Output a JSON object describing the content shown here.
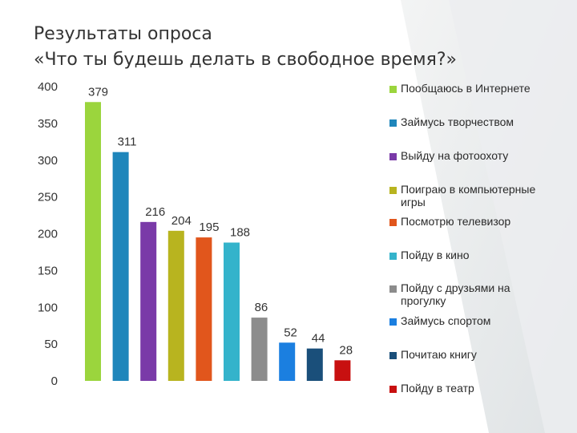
{
  "title_line1": "Результаты опроса",
  "title_line2": "«Что ты будешь делать в свободное время?»",
  "chart_data": {
    "type": "bar",
    "ylim": [
      0,
      400
    ],
    "yticks": [
      0,
      50,
      100,
      150,
      200,
      250,
      300,
      350,
      400
    ],
    "series": [
      {
        "name": "Пообщаюсь в Интернете",
        "value": 379,
        "color": "#9bd53d"
      },
      {
        "name": "Займусь творчеством",
        "value": 311,
        "color": "#1f86bb"
      },
      {
        "name": "Выйду на фотоохоту",
        "value": 216,
        "color": "#7a3aa8"
      },
      {
        "name": "Поиграю в компьютерные игры",
        "value": 204,
        "color": "#b8b41f"
      },
      {
        "name": "Посмотрю телевизор",
        "value": 195,
        "color": "#e1561c"
      },
      {
        "name": "Пойду в кино",
        "value": 188,
        "color": "#34b3cb"
      },
      {
        "name": "Пойду с друзьями на прогулку",
        "value": 86,
        "color": "#8c8c8c"
      },
      {
        "name": "Займусь спортом",
        "value": 52,
        "color": "#1b7fe0"
      },
      {
        "name": "Почитаю книгу",
        "value": 44,
        "color": "#1a4f7a"
      },
      {
        "name": "Пойду в театр",
        "value": 28,
        "color": "#c81010"
      }
    ]
  }
}
